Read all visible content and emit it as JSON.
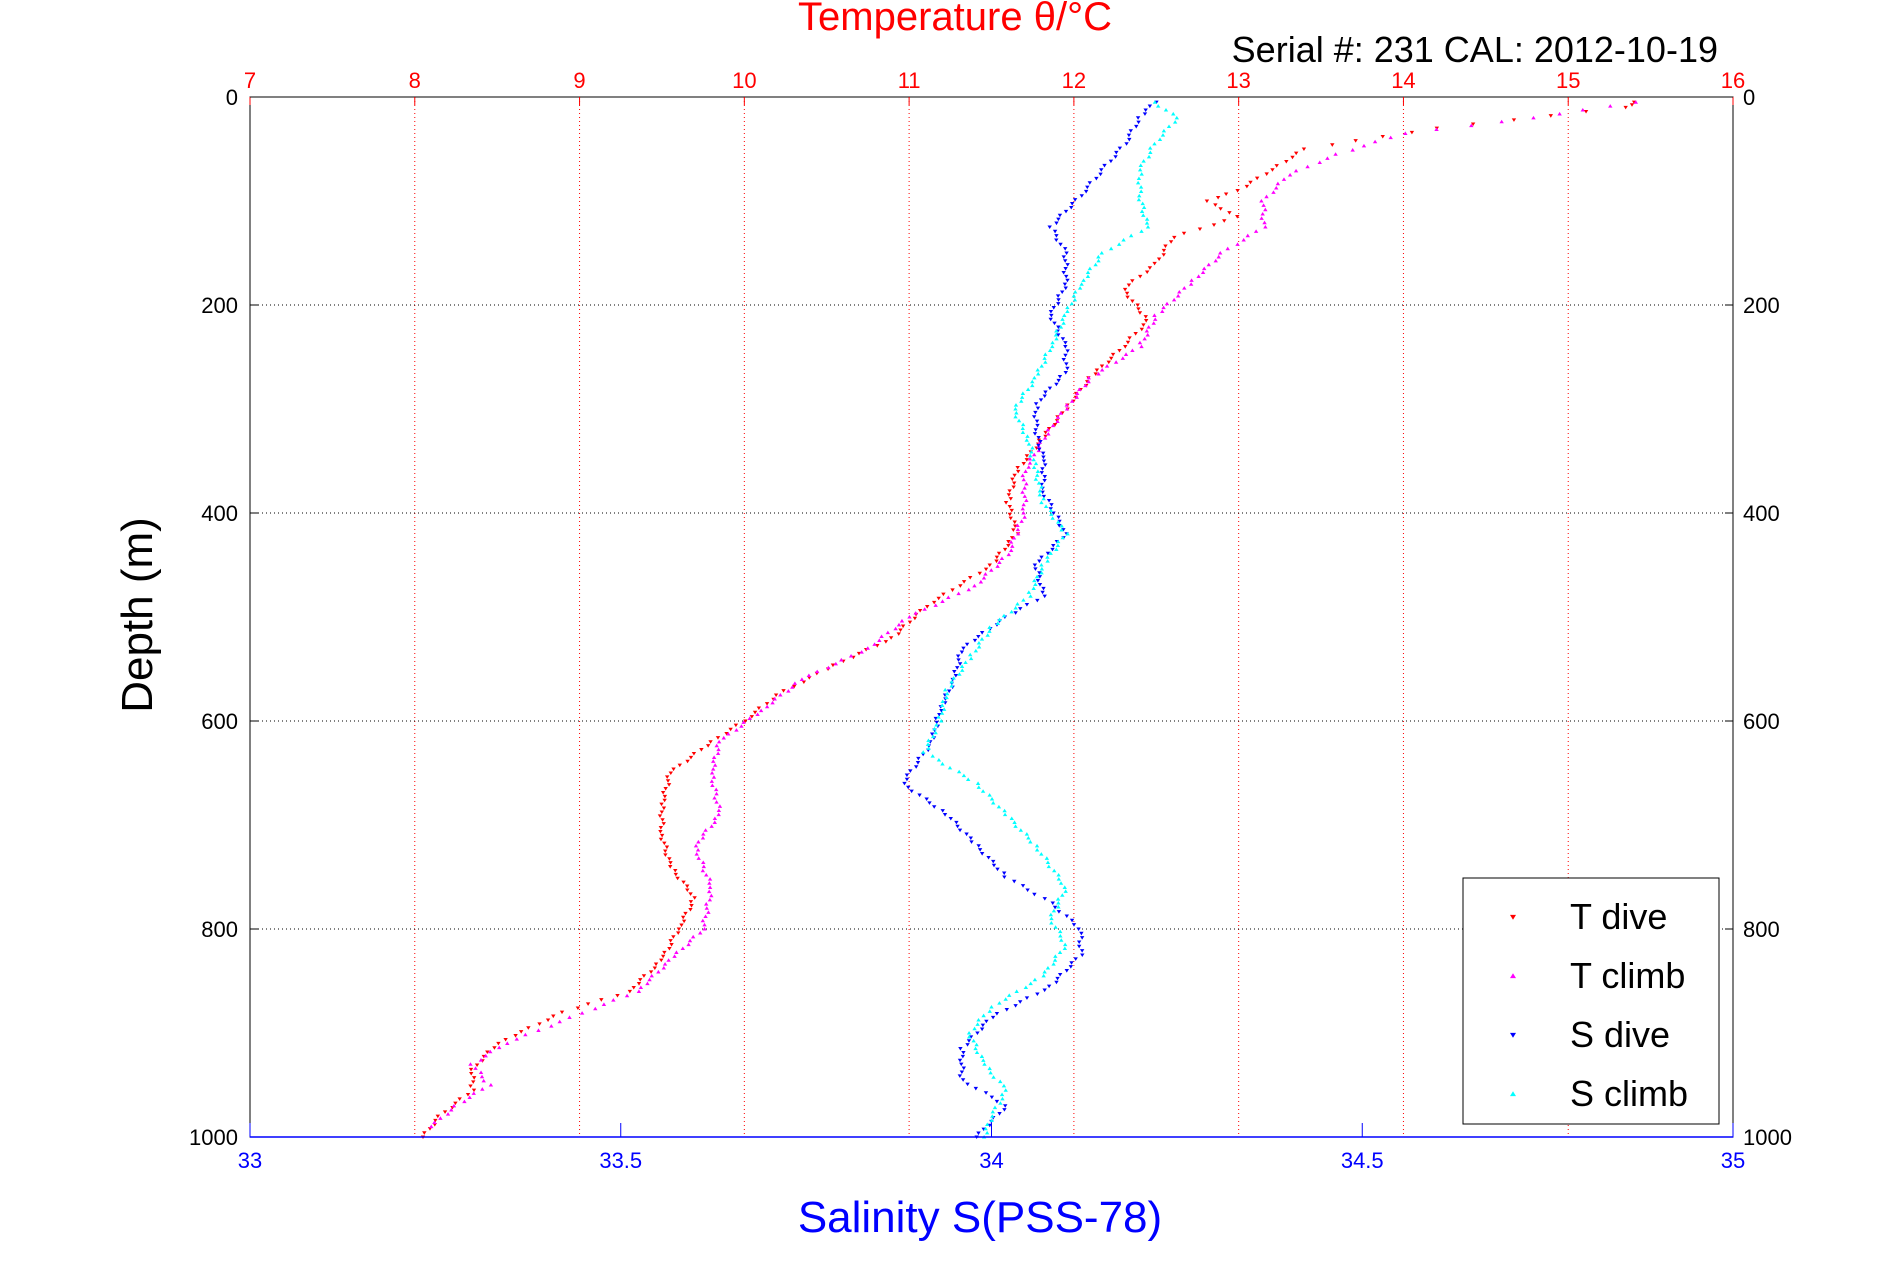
{
  "chart_data": {
    "type": "scatter",
    "title": "Temperature θ/°C",
    "subtitle": "Serial #: 231  CAL: 2012-10-19",
    "ylabel": "Depth (m)",
    "xlabel": "Salinity S(PSS-78)",
    "colors": {
      "temperature_axis": "#ff0000",
      "salinity_axis": "#0000ff",
      "t_dive": "#ff0000",
      "t_climb": "#ff00ff",
      "s_dive": "#0000ff",
      "s_climb": "#00ffff"
    },
    "y_axis": {
      "min": 0,
      "max": 1000,
      "reversed": true,
      "ticks": [
        "0",
        "200",
        "400",
        "600",
        "800",
        "1000"
      ]
    },
    "top_axis": {
      "quantity": "Temperature",
      "min": 7,
      "max": 16,
      "ticks": [
        "7",
        "8",
        "9",
        "10",
        "11",
        "12",
        "13",
        "14",
        "15",
        "16"
      ]
    },
    "bottom_axis": {
      "quantity": "Salinity",
      "min": 33,
      "max": 35,
      "ticks": [
        "33",
        "33.5",
        "34",
        "34.5",
        "35"
      ]
    },
    "grid": "dotted, on temperature ticks and depth ticks",
    "legend": {
      "position": "bottom-right",
      "entries": [
        "T dive",
        "T climb",
        "S dive",
        "S climb"
      ]
    },
    "series": [
      {
        "name": "T dive",
        "axis": "top",
        "marker": "v",
        "points": [
          [
            15.4,
            5
          ],
          [
            15.35,
            10
          ],
          [
            14.2,
            30
          ],
          [
            13.4,
            50
          ],
          [
            13.2,
            70
          ],
          [
            13.0,
            90
          ],
          [
            12.8,
            100
          ],
          [
            13.0,
            115
          ],
          [
            12.6,
            135
          ],
          [
            12.5,
            160
          ],
          [
            12.3,
            185
          ],
          [
            12.45,
            215
          ],
          [
            12.3,
            240
          ],
          [
            12.1,
            270
          ],
          [
            11.95,
            300
          ],
          [
            11.8,
            330
          ],
          [
            11.65,
            360
          ],
          [
            11.6,
            390
          ],
          [
            11.65,
            420
          ],
          [
            11.5,
            450
          ],
          [
            11.1,
            490
          ],
          [
            10.9,
            520
          ],
          [
            10.5,
            550
          ],
          [
            10.2,
            575
          ],
          [
            10.0,
            600
          ],
          [
            9.8,
            620
          ],
          [
            9.55,
            650
          ],
          [
            9.5,
            680
          ],
          [
            9.5,
            710
          ],
          [
            9.55,
            740
          ],
          [
            9.7,
            770
          ],
          [
            9.6,
            800
          ],
          [
            9.5,
            830
          ],
          [
            9.3,
            860
          ],
          [
            8.9,
            880
          ],
          [
            8.5,
            910
          ],
          [
            8.35,
            935
          ],
          [
            8.35,
            955
          ],
          [
            8.15,
            980
          ],
          [
            8.05,
            1000
          ]
        ]
      },
      {
        "name": "T climb",
        "axis": "top",
        "marker": "^",
        "points": [
          [
            15.4,
            5
          ],
          [
            14.8,
            20
          ],
          [
            14.0,
            35
          ],
          [
            13.6,
            55
          ],
          [
            13.3,
            75
          ],
          [
            13.15,
            100
          ],
          [
            13.15,
            125
          ],
          [
            12.9,
            150
          ],
          [
            12.7,
            180
          ],
          [
            12.5,
            210
          ],
          [
            12.4,
            240
          ],
          [
            12.1,
            270
          ],
          [
            11.95,
            300
          ],
          [
            11.85,
            320
          ],
          [
            11.7,
            360
          ],
          [
            11.7,
            400
          ],
          [
            11.6,
            440
          ],
          [
            11.4,
            470
          ],
          [
            11.0,
            500
          ],
          [
            10.75,
            530
          ],
          [
            10.35,
            560
          ],
          [
            10.1,
            590
          ],
          [
            9.85,
            620
          ],
          [
            9.8,
            650
          ],
          [
            9.85,
            690
          ],
          [
            9.7,
            720
          ],
          [
            9.8,
            760
          ],
          [
            9.75,
            800
          ],
          [
            9.55,
            830
          ],
          [
            9.35,
            860
          ],
          [
            8.95,
            885
          ],
          [
            8.55,
            910
          ],
          [
            8.35,
            930
          ],
          [
            8.45,
            950
          ],
          [
            8.25,
            970
          ],
          [
            8.1,
            990
          ]
        ]
      },
      {
        "name": "S dive",
        "axis": "bottom",
        "marker": "v",
        "points": [
          [
            34.22,
            5
          ],
          [
            34.2,
            20
          ],
          [
            34.18,
            45
          ],
          [
            34.15,
            70
          ],
          [
            34.12,
            95
          ],
          [
            34.08,
            125
          ],
          [
            34.1,
            150
          ],
          [
            34.1,
            180
          ],
          [
            34.08,
            210
          ],
          [
            34.1,
            240
          ],
          [
            34.1,
            265
          ],
          [
            34.06,
            295
          ],
          [
            34.06,
            320
          ],
          [
            34.07,
            350
          ],
          [
            34.07,
            380
          ],
          [
            34.1,
            420
          ],
          [
            34.06,
            450
          ],
          [
            34.07,
            480
          ],
          [
            34.02,
            500
          ],
          [
            33.96,
            530
          ],
          [
            33.95,
            560
          ],
          [
            33.93,
            590
          ],
          [
            33.92,
            620
          ],
          [
            33.88,
            660
          ],
          [
            33.94,
            690
          ],
          [
            33.98,
            720
          ],
          [
            34.02,
            750
          ],
          [
            34.08,
            775
          ],
          [
            34.12,
            800
          ],
          [
            34.12,
            825
          ],
          [
            34.08,
            855
          ],
          [
            34.0,
            885
          ],
          [
            33.96,
            915
          ],
          [
            33.96,
            945
          ],
          [
            34.02,
            970
          ],
          [
            33.98,
            1000
          ]
        ]
      },
      {
        "name": "S climb",
        "axis": "bottom",
        "marker": "^",
        "points": [
          [
            34.22,
            5
          ],
          [
            34.25,
            20
          ],
          [
            34.22,
            45
          ],
          [
            34.2,
            70
          ],
          [
            34.2,
            95
          ],
          [
            34.21,
            125
          ],
          [
            34.15,
            150
          ],
          [
            34.12,
            180
          ],
          [
            34.1,
            210
          ],
          [
            34.08,
            240
          ],
          [
            34.06,
            270
          ],
          [
            34.03,
            300
          ],
          [
            34.05,
            330
          ],
          [
            34.06,
            360
          ],
          [
            34.07,
            390
          ],
          [
            34.1,
            420
          ],
          [
            34.07,
            450
          ],
          [
            34.05,
            480
          ],
          [
            34.0,
            510
          ],
          [
            33.97,
            540
          ],
          [
            33.94,
            570
          ],
          [
            33.93,
            600
          ],
          [
            33.91,
            630
          ],
          [
            33.98,
            660
          ],
          [
            34.02,
            690
          ],
          [
            34.06,
            720
          ],
          [
            34.1,
            760
          ],
          [
            34.08,
            790
          ],
          [
            34.1,
            815
          ],
          [
            34.07,
            845
          ],
          [
            34.0,
            875
          ],
          [
            33.97,
            900
          ],
          [
            33.99,
            930
          ],
          [
            34.02,
            955
          ],
          [
            34.0,
            980
          ],
          [
            33.99,
            1000
          ]
        ]
      }
    ]
  }
}
